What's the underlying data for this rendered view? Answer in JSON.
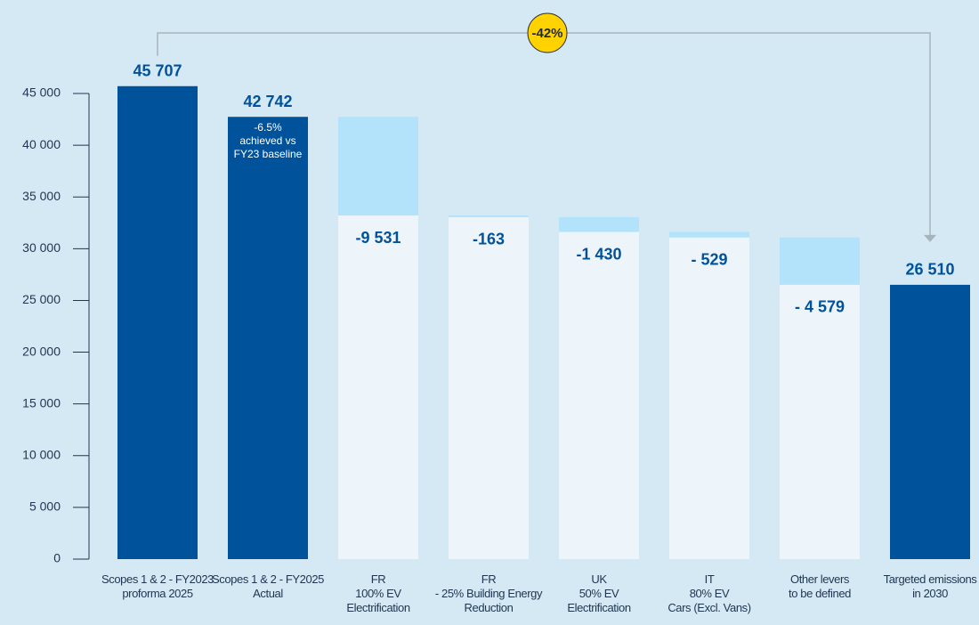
{
  "chart_data": {
    "type": "waterfall",
    "categories": [
      "Scopes 1 & 2 - FY2023\nproforma 2025",
      "Scopes 1 & 2 - FY2025\nActual",
      "FR\n100% EV\nElectrification",
      "FR\n- 25% Building Energy\nReduction",
      "UK\n50% EV\nElectrification",
      "IT\n80% EV\nCars (Excl. Vans)",
      "Other levers\nto be defined",
      "Targeted emissions\nin 2030"
    ],
    "measure": [
      "absolute",
      "absolute",
      "relative",
      "relative",
      "relative",
      "relative",
      "relative",
      "total"
    ],
    "values": [
      45707,
      42742,
      -9531,
      -163,
      -1430,
      -529,
      -4579,
      26510
    ],
    "value_labels": [
      "45 707",
      "42 742",
      "-9 531",
      "-163",
      "-1 430",
      "- 529",
      "- 4 579",
      "26 510"
    ],
    "colors": {
      "absolute": "#00529b",
      "total": "#00529b",
      "change": "#b3e3fa",
      "remaining": "#eef5fa"
    },
    "bar_annotation": {
      "index": 1,
      "text": "-6.5%\nachieved vs\nFY23 baseline"
    },
    "overall_change": "-42%",
    "ylim": [
      0,
      45000
    ],
    "yticks": [
      0,
      {
        "value": 5000,
        "label": "5 000"
      },
      {
        "value": 10000,
        "label": "10 000"
      },
      {
        "value": 15000,
        "label": "15 000"
      },
      {
        "value": 20000,
        "label": "20 000"
      },
      {
        "value": 25000,
        "label": "25 000"
      },
      {
        "value": 30000,
        "label": "30 000"
      },
      {
        "value": 35000,
        "label": "35 000"
      },
      {
        "value": 40000,
        "label": "40 000"
      },
      {
        "value": 45000,
        "label": "45 000"
      }
    ]
  }
}
